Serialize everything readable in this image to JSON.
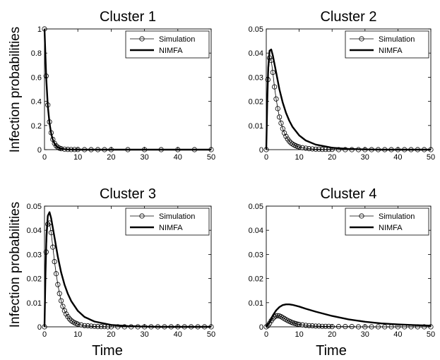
{
  "figure": {
    "ylabel": "Infection probabilities",
    "xlabel": "Time"
  },
  "legend": {
    "sim_label": "Simulation",
    "nimfa_label": "NIMFA"
  },
  "chart_data": [
    {
      "type": "line",
      "title": "Cluster 1",
      "xlim": [
        0,
        50
      ],
      "ylim": [
        0,
        1
      ],
      "xticks": [
        "0",
        "10",
        "20",
        "30",
        "40",
        "50"
      ],
      "yticks": [
        "0",
        "0.2",
        "0.4",
        "0.6",
        "0.8",
        "1"
      ],
      "xtick_values": [
        0,
        10,
        20,
        30,
        40,
        50
      ],
      "ytick_values": [
        0,
        0.2,
        0.4,
        0.6,
        0.8,
        1
      ],
      "legend_position": "top-right",
      "series": [
        {
          "name": "Simulation",
          "style": "thin line with circle markers",
          "x": [
            0,
            0.5,
            1,
            1.5,
            2,
            2.5,
            3,
            3.5,
            4,
            4.5,
            5,
            6,
            7,
            8,
            9,
            10,
            12,
            14,
            16,
            18,
            20,
            25,
            30,
            35,
            40,
            45,
            50
          ],
          "y": [
            1.0,
            0.61,
            0.37,
            0.23,
            0.14,
            0.085,
            0.052,
            0.032,
            0.02,
            0.012,
            0.008,
            0.004,
            0.002,
            0.001,
            0.001,
            0.001,
            0.0,
            0.0,
            0.0,
            0.0,
            0.0,
            0.0,
            0.0,
            0.0,
            0.0,
            0.0,
            0.0
          ]
        },
        {
          "name": "NIMFA",
          "style": "thick line",
          "x": [
            0,
            0.5,
            1,
            1.5,
            2,
            2.5,
            3,
            3.5,
            4,
            5,
            6,
            7,
            8,
            10,
            15,
            20,
            30,
            40,
            50
          ],
          "y": [
            1.0,
            0.6,
            0.36,
            0.22,
            0.135,
            0.082,
            0.05,
            0.031,
            0.019,
            0.008,
            0.004,
            0.002,
            0.001,
            0.0,
            0.0,
            0.0,
            0.0,
            0.0,
            0.0
          ]
        }
      ]
    },
    {
      "type": "line",
      "title": "Cluster 2",
      "xlim": [
        0,
        50
      ],
      "ylim": [
        0,
        0.05
      ],
      "xticks": [
        "0",
        "10",
        "20",
        "30",
        "40",
        "50"
      ],
      "yticks": [
        "0",
        "0.01",
        "0.02",
        "0.03",
        "0.04",
        "0.05"
      ],
      "xtick_values": [
        0,
        10,
        20,
        30,
        40,
        50
      ],
      "ytick_values": [
        0,
        0.01,
        0.02,
        0.03,
        0.04,
        0.05
      ],
      "legend_position": "top-right",
      "series": [
        {
          "name": "Simulation",
          "style": "thin line with circle markers",
          "x": [
            0,
            0.5,
            1,
            1.5,
            2,
            2.5,
            3,
            3.5,
            4,
            4.5,
            5,
            5.5,
            6,
            6.5,
            7,
            7.5,
            8,
            8.5,
            9,
            9.5,
            10,
            11,
            12,
            13,
            14,
            15,
            16,
            17,
            18,
            19,
            20,
            22,
            24,
            26,
            28,
            30,
            32,
            34,
            36,
            38,
            40,
            42,
            44,
            46,
            48,
            50
          ],
          "y": [
            0,
            0.029,
            0.038,
            0.037,
            0.032,
            0.026,
            0.021,
            0.017,
            0.0135,
            0.011,
            0.0087,
            0.0069,
            0.0055,
            0.0044,
            0.0035,
            0.0028,
            0.0023,
            0.0019,
            0.0016,
            0.0013,
            0.0011,
            0.0008,
            0.0006,
            0.0004,
            0.0003,
            0.0002,
            0.0002,
            0.0001,
            0.0001,
            0.0001,
            0.0001,
            0.0,
            0.0,
            0.0,
            0.0,
            0.0,
            0.0,
            0.0,
            0.0,
            0.0,
            0.0,
            0.0,
            0.0,
            0.0,
            0.0,
            0.0
          ]
        },
        {
          "name": "NIMFA",
          "style": "thick line",
          "x": [
            0,
            0.3,
            0.6,
            1,
            1.5,
            2,
            3,
            4,
            5,
            6,
            7,
            8,
            10,
            12,
            15,
            20,
            25,
            30,
            35,
            40,
            45,
            50
          ],
          "y": [
            0,
            0.02,
            0.034,
            0.041,
            0.0415,
            0.039,
            0.032,
            0.025,
            0.0195,
            0.0152,
            0.012,
            0.0094,
            0.0059,
            0.0038,
            0.0021,
            0.0008,
            0.0003,
            0.0001,
            0.0,
            0.0,
            0.0,
            0.0
          ]
        }
      ]
    },
    {
      "type": "line",
      "title": "Cluster 3",
      "xlim": [
        0,
        50
      ],
      "ylim": [
        0,
        0.05
      ],
      "xticks": [
        "0",
        "10",
        "20",
        "30",
        "40",
        "50"
      ],
      "yticks": [
        "0",
        "0.01",
        "0.02",
        "0.03",
        "0.04",
        "0.05"
      ],
      "xtick_values": [
        0,
        10,
        20,
        30,
        40,
        50
      ],
      "ytick_values": [
        0,
        0.01,
        0.02,
        0.03,
        0.04,
        0.05
      ],
      "legend_position": "top-right",
      "series": [
        {
          "name": "Simulation",
          "style": "thin line with circle markers",
          "x": [
            0,
            0.5,
            1,
            1.5,
            2,
            2.5,
            3,
            3.5,
            4,
            4.5,
            5,
            5.5,
            6,
            6.5,
            7,
            7.5,
            8,
            8.5,
            9,
            9.5,
            10,
            11,
            12,
            13,
            14,
            15,
            16,
            17,
            18,
            19,
            20,
            22,
            24,
            26,
            28,
            30,
            32,
            34,
            36,
            38,
            40,
            42,
            44,
            46,
            48,
            50
          ],
          "y": [
            0,
            0.031,
            0.0425,
            0.043,
            0.039,
            0.033,
            0.027,
            0.022,
            0.0175,
            0.0138,
            0.0108,
            0.0085,
            0.0067,
            0.0053,
            0.0042,
            0.0033,
            0.0026,
            0.0021,
            0.0017,
            0.0014,
            0.0011,
            0.0008,
            0.0005,
            0.0004,
            0.0003,
            0.0002,
            0.0001,
            0.0001,
            0.0001,
            0.0,
            0.0,
            0.0,
            0.0,
            0.0,
            0.0,
            0.0,
            0.0,
            0.0,
            0.0,
            0.0,
            0.0,
            0.0,
            0.0,
            0.0,
            0.0,
            0.0
          ]
        },
        {
          "name": "NIMFA",
          "style": "thick line",
          "x": [
            0,
            0.3,
            0.6,
            1,
            1.5,
            2,
            3,
            4,
            5,
            6,
            7,
            8,
            10,
            12,
            15,
            20,
            25,
            30,
            35,
            40,
            45,
            50
          ],
          "y": [
            0,
            0.022,
            0.038,
            0.046,
            0.0475,
            0.045,
            0.037,
            0.029,
            0.0225,
            0.0175,
            0.0137,
            0.0107,
            0.0066,
            0.0041,
            0.0022,
            0.0008,
            0.0003,
            0.0001,
            0.0,
            0.0,
            0.0,
            0.0
          ]
        }
      ]
    },
    {
      "type": "line",
      "title": "Cluster 4",
      "xlim": [
        0,
        50
      ],
      "ylim": [
        0,
        0.05
      ],
      "xticks": [
        "0",
        "10",
        "20",
        "30",
        "40",
        "50"
      ],
      "yticks": [
        "0",
        "0.01",
        "0.02",
        "0.03",
        "0.04",
        "0.05"
      ],
      "xtick_values": [
        0,
        10,
        20,
        30,
        40,
        50
      ],
      "ytick_values": [
        0,
        0.01,
        0.02,
        0.03,
        0.04,
        0.05
      ],
      "legend_position": "top-right",
      "series": [
        {
          "name": "Simulation",
          "style": "thin line with circle markers",
          "x": [
            0,
            0.5,
            1,
            1.5,
            2,
            2.5,
            3,
            3.5,
            4,
            4.5,
            5,
            5.5,
            6,
            6.5,
            7,
            7.5,
            8,
            8.5,
            9,
            9.5,
            10,
            11,
            12,
            13,
            14,
            15,
            16,
            17,
            18,
            19,
            20,
            22,
            24,
            26,
            28,
            30,
            32,
            34,
            36,
            38,
            40,
            42,
            44,
            46,
            48,
            50
          ],
          "y": [
            0,
            0.0005,
            0.0014,
            0.0025,
            0.0034,
            0.0041,
            0.0045,
            0.0046,
            0.0045,
            0.0042,
            0.0038,
            0.0034,
            0.003,
            0.0026,
            0.0023,
            0.002,
            0.0017,
            0.0015,
            0.0013,
            0.0011,
            0.001,
            0.0008,
            0.0006,
            0.0005,
            0.0004,
            0.0003,
            0.0003,
            0.0002,
            0.0002,
            0.0002,
            0.0001,
            0.0001,
            0.0001,
            0.0001,
            0.0,
            0.0,
            0.0,
            0.0,
            0.0,
            0.0,
            0.0,
            0.0,
            0.0,
            0.0,
            0.0,
            0.0
          ]
        },
        {
          "name": "NIMFA",
          "style": "thick line",
          "x": [
            0,
            1,
            2,
            3,
            4,
            5,
            6,
            7,
            8,
            10,
            12,
            15,
            20,
            25,
            30,
            35,
            40,
            45,
            50
          ],
          "y": [
            0,
            0.002,
            0.0047,
            0.0068,
            0.0082,
            0.009,
            0.0093,
            0.0093,
            0.0091,
            0.0084,
            0.0075,
            0.0063,
            0.0045,
            0.0031,
            0.0021,
            0.0014,
            0.001,
            0.0007,
            0.0005
          ]
        }
      ]
    }
  ]
}
